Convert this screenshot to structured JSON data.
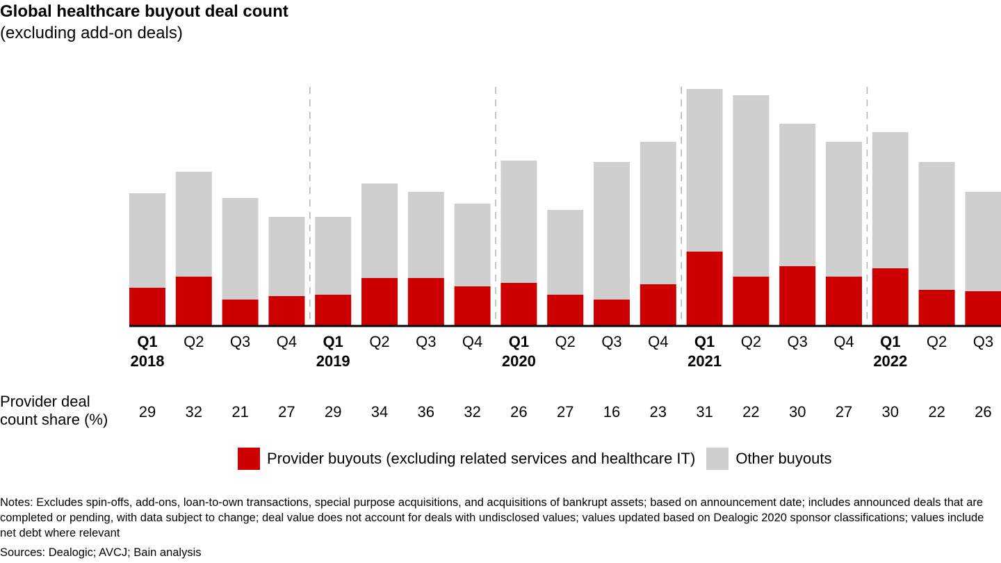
{
  "chart_data": {
    "type": "bar",
    "stacked": true,
    "title": "Global healthcare buyout deal count",
    "subtitle": "(excluding add-on deals)",
    "xlabel": "",
    "ylabel": "",
    "y_axis_visible": false,
    "grid": false,
    "ylim": [
      0,
      350
    ],
    "categories": [
      "Q1",
      "Q2",
      "Q3",
      "Q4",
      "Q1",
      "Q2",
      "Q3",
      "Q4",
      "Q1",
      "Q2",
      "Q3",
      "Q4",
      "Q1",
      "Q2",
      "Q3",
      "Q4",
      "Q1",
      "Q2",
      "Q3"
    ],
    "years": [
      "2018",
      "",
      "",
      "",
      "2019",
      "",
      "",
      "",
      "2020",
      "",
      "",
      "",
      "2021",
      "",
      "",
      "",
      "2022",
      "",
      ""
    ],
    "year_start_flags": [
      true,
      false,
      false,
      false,
      true,
      false,
      false,
      false,
      true,
      false,
      false,
      false,
      true,
      false,
      false,
      false,
      true,
      false,
      false
    ],
    "series": [
      {
        "name": "Provider buyouts (excluding related services and healthcare IT)",
        "color": "#cc0000",
        "values": [
          54,
          70,
          37,
          42,
          44,
          68,
          68,
          56,
          61,
          44,
          37,
          59,
          106,
          70,
          85,
          70,
          82,
          51,
          49
        ]
      },
      {
        "name": "Other buyouts",
        "color": "#cfcfcf",
        "values": [
          136,
          151,
          146,
          114,
          112,
          136,
          124,
          119,
          176,
          122,
          198,
          205,
          234,
          261,
          205,
          194,
          196,
          184,
          143
        ]
      }
    ],
    "share_row": {
      "label_line1": "Provider deal",
      "label_line2": "count share (%)",
      "values": [
        "29",
        "32",
        "21",
        "27",
        "29",
        "34",
        "36",
        "32",
        "26",
        "27",
        "16",
        "23",
        "31",
        "22",
        "30",
        "27",
        "30",
        "22",
        "26"
      ]
    },
    "legend_position": "bottom-center"
  },
  "notes": "Notes: Excludes spin-offs, add-ons, loan-to-own transactions, special purpose acquisitions, and acquisitions of bankrupt assets; based on announcement date; includes announced deals that are completed or pending, with data subject to change; deal value does not account for deals with undisclosed values; values updated based on Dealogic 2020 sponsor classifications; values include net debt where relevant",
  "sources": "Sources: Dealogic; AVCJ; Bain analysis"
}
